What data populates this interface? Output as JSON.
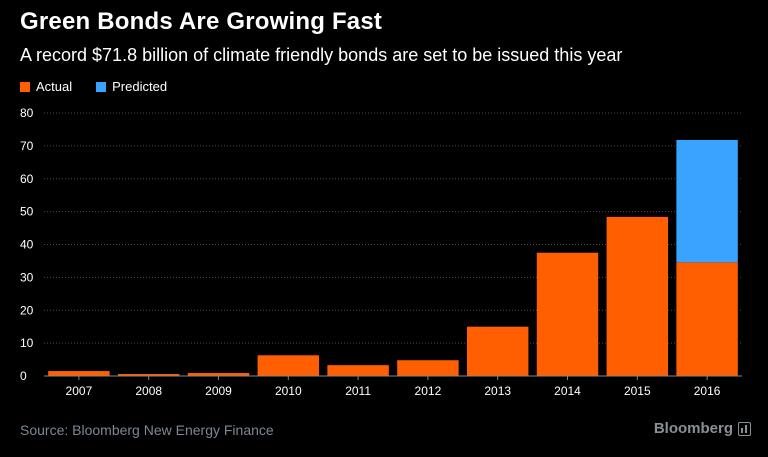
{
  "header": {
    "title": "Green Bonds Are Growing Fast",
    "subtitle": "A record $71.8 billion of climate friendly bonds are set to be issued this year"
  },
  "legend": {
    "actual": "Actual",
    "predicted": "Predicted"
  },
  "colors": {
    "actual": "#ff5f00",
    "predicted": "#3aa3ff",
    "grid": "#4a4a4a",
    "tick": "#ffffff"
  },
  "footer": {
    "source": "Source: Bloomberg New Energy Finance",
    "brand": "Bloomberg"
  },
  "chart_data": {
    "type": "bar",
    "stacked": true,
    "title": "Green Bonds Are Growing Fast",
    "subtitle": "A record $71.8 billion of climate friendly bonds are set to be issued this year",
    "xlabel": "",
    "ylabel": "",
    "ylim": [
      0,
      80
    ],
    "yticks": [
      0,
      10,
      20,
      30,
      40,
      50,
      60,
      70,
      80
    ],
    "grid": true,
    "legend_position": "top-left",
    "categories": [
      "2007",
      "2008",
      "2009",
      "2010",
      "2011",
      "2012",
      "2013",
      "2014",
      "2015",
      "2016"
    ],
    "series": [
      {
        "name": "Actual",
        "values": [
          1.5,
          0.6,
          0.9,
          6.3,
          3.3,
          4.8,
          15.0,
          37.5,
          48.4,
          34.6
        ]
      },
      {
        "name": "Predicted",
        "values": [
          0,
          0,
          0,
          0,
          0,
          0,
          0,
          0,
          0,
          37.2
        ]
      }
    ]
  }
}
